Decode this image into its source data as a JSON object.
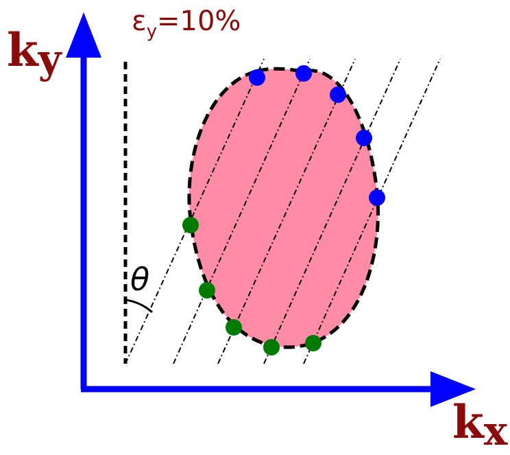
{
  "strain_label": "εy=10%",
  "strain_prefix": "ε",
  "strain_sub": "y",
  "strain_value": "=10%",
  "axis_y_main": "k",
  "axis_y_sub": "y",
  "axis_x_main": "k",
  "axis_x_sub": "x",
  "angle_symbol": "θ",
  "colors": {
    "axis": "#0000ff",
    "ellipse_fill": "#ff8ca6",
    "label": "#8b0a0a",
    "upper_points": "#0000ff",
    "lower_points": "#007a00"
  }
}
